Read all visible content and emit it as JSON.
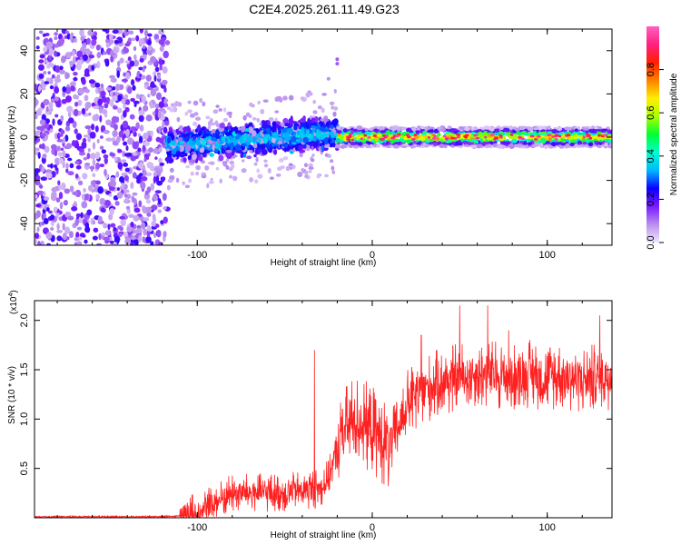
{
  "title": "C2E4.2025.261.11.49.G23",
  "chart_data": [
    {
      "type": "heatmap",
      "id": "spectrogram",
      "xlabel": "Height of straight line (km)",
      "ylabel": "Frequency (Hz)",
      "xlim": [
        -193,
        137
      ],
      "ylim": [
        -50,
        50
      ],
      "xticks": [
        -100,
        0,
        100
      ],
      "yticks": [
        -40,
        -20,
        0,
        20,
        40
      ],
      "ytick_labels": [
        "-40",
        "-20",
        "0",
        "20",
        "40"
      ],
      "colorbar": {
        "label": "Normalized spectral amplitude",
        "ticks": [
          0.0,
          0.2,
          0.4,
          0.6,
          0.8
        ],
        "tick_labels": [
          "0.0",
          "0.2",
          "0.4",
          "0.6",
          "0.8"
        ],
        "range": [
          0,
          1
        ],
        "colors": [
          "#f2e6ff",
          "#b890ee",
          "#7a1bff",
          "#0a00ff",
          "#00b8ff",
          "#00ffd0",
          "#00ff30",
          "#aaff00",
          "#ffee00",
          "#ff8000",
          "#ff2000",
          "#ff2080",
          "#ff60c0"
        ]
      },
      "regions": [
        {
          "x_range": [
            -193,
            -117
          ],
          "freq_range": [
            -50,
            50
          ],
          "amplitude": "0.0-0.2 scattered noise"
        },
        {
          "x_range": [
            -117,
            -20
          ],
          "freq_range": [
            -12,
            10
          ],
          "amplitude": "0.1-0.45 broadband, frequency rising with height"
        },
        {
          "x_range": [
            -20,
            137
          ],
          "freq_center": 0,
          "freq_halfwidth": 3,
          "amplitude": "0.3-1.0 narrow band near 0 Hz"
        }
      ]
    },
    {
      "type": "line",
      "id": "snr",
      "xlabel": "Height of straight line (km)",
      "ylabel": "SNR (10 * v/v)",
      "y_multiplier": "(x10",
      "y_multiplier_exp": "4",
      "xlim": [
        -193,
        137
      ],
      "ylim": [
        0,
        2.2
      ],
      "xticks": [
        -100,
        0,
        100
      ],
      "yticks": [
        0.5,
        1.0,
        1.5,
        2.0
      ],
      "ytick_labels": [
        "0.5",
        "1.0",
        "1.5",
        "2.0"
      ],
      "line_color": "#ff2020",
      "series": [
        {
          "name": "SNR",
          "x": [
            -193,
            -150,
            -120,
            -110,
            -100,
            -90,
            -80,
            -70,
            -60,
            -50,
            -40,
            -30,
            -25,
            -20,
            -15,
            -10,
            0,
            5,
            10,
            20,
            30,
            40,
            50,
            60,
            70,
            80,
            90,
            100,
            110,
            120,
            130,
            137
          ],
          "y": [
            0.01,
            0.01,
            0.01,
            0.02,
            0.05,
            0.15,
            0.25,
            0.25,
            0.25,
            0.25,
            0.28,
            0.3,
            0.4,
            0.7,
            0.9,
            1.0,
            0.9,
            0.8,
            0.7,
            1.15,
            1.3,
            1.38,
            1.42,
            1.45,
            1.45,
            1.42,
            1.46,
            1.42,
            1.44,
            1.4,
            1.42,
            1.45
          ],
          "peaks": [
            {
              "x": -33,
              "y": 1.7
            },
            {
              "x": -17,
              "y": 1.1
            },
            {
              "x": 28,
              "y": 1.85
            },
            {
              "x": 50,
              "y": 2.15
            },
            {
              "x": 66,
              "y": 2.15
            },
            {
              "x": 78,
              "y": 1.9
            },
            {
              "x": 130,
              "y": 2.05
            }
          ]
        }
      ]
    }
  ]
}
